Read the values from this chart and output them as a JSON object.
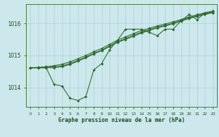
{
  "title": "Graphe pression niveau de la mer (hPa)",
  "bg_color": "#cce8ec",
  "grid_color": "#aacdd4",
  "line_color": "#2d6a2d",
  "x_ticks": [
    0,
    1,
    2,
    3,
    4,
    5,
    6,
    7,
    8,
    9,
    10,
    11,
    12,
    13,
    14,
    15,
    16,
    17,
    18,
    19,
    20,
    21,
    22,
    23
  ],
  "ylim": [
    1013.4,
    1016.6
  ],
  "yticks": [
    1014,
    1015,
    1016
  ],
  "series1_x": [
    0,
    1,
    2,
    3,
    4,
    5,
    6,
    7,
    8,
    9,
    10,
    11,
    12,
    13,
    14,
    15,
    16,
    17,
    18,
    19,
    20,
    21,
    22,
    23
  ],
  "series1_y": [
    1014.62,
    1014.62,
    1014.62,
    1014.1,
    1014.05,
    1013.67,
    1013.6,
    1013.72,
    1014.55,
    1014.75,
    1015.18,
    1015.48,
    1015.82,
    1015.82,
    1015.82,
    1015.72,
    1015.62,
    1015.82,
    1015.82,
    1016.08,
    1016.28,
    1016.12,
    1016.32,
    1016.38
  ],
  "series2_x": [
    0,
    1,
    2,
    3,
    4,
    5,
    6,
    7,
    8,
    9,
    10,
    11,
    12,
    13,
    14,
    15,
    16,
    17,
    18,
    19,
    20,
    21,
    22,
    23
  ],
  "series2_y": [
    1014.62,
    1014.63,
    1014.65,
    1014.68,
    1014.73,
    1014.8,
    1014.9,
    1015.0,
    1015.12,
    1015.22,
    1015.35,
    1015.48,
    1015.58,
    1015.68,
    1015.78,
    1015.85,
    1015.92,
    1015.98,
    1016.05,
    1016.12,
    1016.2,
    1016.27,
    1016.33,
    1016.38
  ],
  "series3_x": [
    0,
    1,
    2,
    3,
    4,
    5,
    6,
    7,
    8,
    9,
    10,
    11,
    12,
    13,
    14,
    15,
    16,
    17,
    18,
    19,
    20,
    21,
    22,
    23
  ],
  "series3_y": [
    1014.62,
    1014.62,
    1014.63,
    1014.65,
    1014.68,
    1014.75,
    1014.85,
    1014.95,
    1015.07,
    1015.17,
    1015.3,
    1015.43,
    1015.53,
    1015.63,
    1015.73,
    1015.81,
    1015.88,
    1015.94,
    1016.01,
    1016.09,
    1016.17,
    1016.24,
    1016.3,
    1016.35
  ],
  "series4_x": [
    0,
    1,
    2,
    3,
    4,
    5,
    6,
    7,
    8,
    9,
    10,
    11,
    12,
    13,
    14,
    15,
    16,
    17,
    18,
    19,
    20,
    21,
    22,
    23
  ],
  "series4_y": [
    1014.62,
    1014.62,
    1014.62,
    1014.62,
    1014.65,
    1014.72,
    1014.82,
    1014.93,
    1015.05,
    1015.15,
    1015.28,
    1015.41,
    1015.5,
    1015.6,
    1015.7,
    1015.78,
    1015.86,
    1015.92,
    1015.99,
    1016.07,
    1016.15,
    1016.22,
    1016.28,
    1016.33
  ]
}
